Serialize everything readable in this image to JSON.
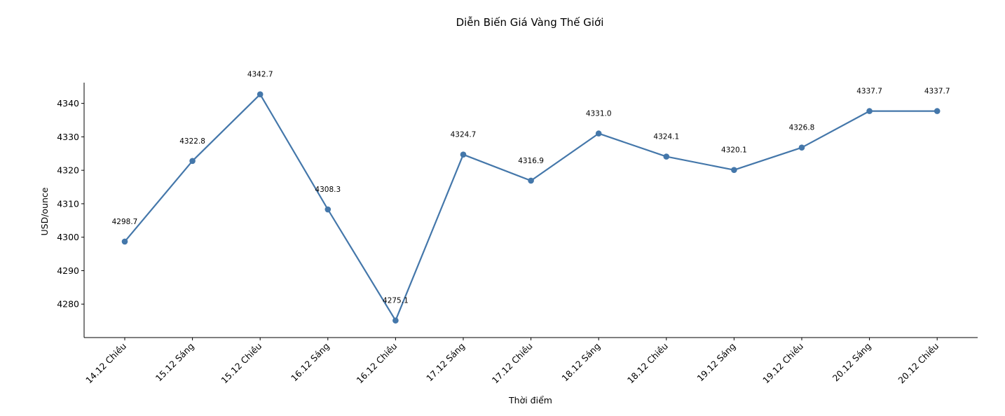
{
  "chart_data": {
    "type": "line",
    "title": "Diễn Biến Giá Vàng Thế Giới",
    "xlabel": "Thời điểm",
    "ylabel": "USD/ounce",
    "categories": [
      "14.12 Chiều",
      "15.12 Sáng",
      "15.12 Chiều",
      "16.12 Sáng",
      "16.12 Chiều",
      "17.12 Sáng",
      "17.12 Chiều",
      "18.12 Sáng",
      "18.12 Chiều",
      "19.12 Sáng",
      "19.12 Chiều",
      "20.12 Sáng",
      "20.12 Chiều"
    ],
    "series": [
      {
        "values": [
          4298.7,
          4322.8,
          4342.7,
          4308.3,
          4275.1,
          4324.7,
          4316.9,
          4331.0,
          4324.1,
          4320.1,
          4326.8,
          4337.7,
          4337.7
        ],
        "color": "#4477aa"
      }
    ],
    "data_labels": [
      "4298.7",
      "4322.8",
      "4342.7",
      "4308.3",
      "4275.1",
      "4324.7",
      "4316.9",
      "4331.0",
      "4324.1",
      "4320.1",
      "4326.8",
      "4337.7",
      "4337.7"
    ],
    "y_ticks": [
      "4280",
      "4290",
      "4300",
      "4310",
      "4320",
      "4330",
      "4340"
    ],
    "ylim": [
      4270,
      4346.2
    ],
    "grid": false,
    "legend": "none"
  }
}
